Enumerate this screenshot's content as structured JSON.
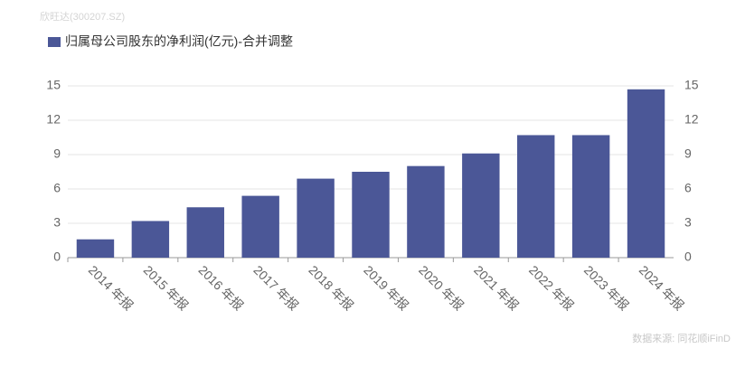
{
  "chart_data": {
    "type": "bar",
    "watermark": "欣旺达(300207.SZ)",
    "source": "数据来源: 同花顺iFinD",
    "categories": [
      "2014 年报",
      "2015 年报",
      "2016 年报",
      "2017 年报",
      "2018 年报",
      "2019 年报",
      "2020 年报",
      "2021 年报",
      "2022 年报",
      "2023 年报",
      "2024 年报"
    ],
    "series": [
      {
        "name": "归属母公司股东的净利润(亿元)-合并调整",
        "color": "#4b5797",
        "values": [
          1.6,
          3.2,
          4.4,
          5.4,
          6.9,
          7.5,
          8.0,
          9.1,
          10.7,
          10.7,
          14.7
        ]
      }
    ],
    "ylim": [
      0,
      15
    ],
    "yticks": [
      0,
      3,
      6,
      9,
      12,
      15
    ],
    "y2lim": [
      0,
      15
    ],
    "y2ticks": [
      0,
      3,
      6,
      9,
      12,
      15
    ],
    "grid": true
  }
}
